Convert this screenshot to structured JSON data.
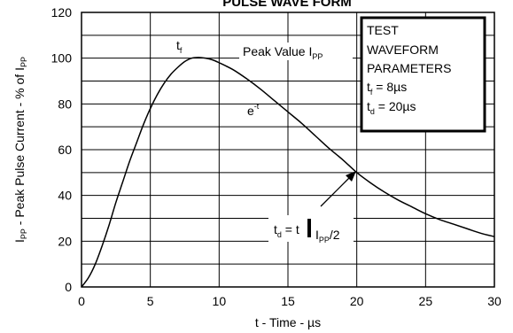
{
  "chart_data": {
    "type": "line",
    "title": "PULSE WAVE FORM",
    "xlabel": "t - Time - µs",
    "ylabel": {
      "a": "I",
      "a_sub": "PP",
      "b": " - Peak Pulse Current - % of I",
      "b_sub": "PP"
    },
    "xlim": [
      0,
      30
    ],
    "ylim": [
      0,
      120
    ],
    "xticks": [
      "0",
      "5",
      "10",
      "15",
      "20",
      "25",
      "30"
    ],
    "yticks": [
      "0",
      "20",
      "40",
      "60",
      "80",
      "100",
      "120"
    ],
    "grid": true,
    "series": [
      {
        "x": [
          0,
          0.5,
          1,
          1.5,
          2,
          2.5,
          3,
          3.5,
          4,
          4.5,
          5,
          5.5,
          6,
          6.5,
          7,
          7.5,
          8,
          8.5,
          9,
          9.5,
          10,
          11,
          12,
          13,
          14,
          15,
          16,
          17,
          18,
          19,
          20,
          21,
          22,
          23,
          24,
          25,
          26,
          27,
          28,
          29,
          30
        ],
        "y": [
          0,
          4,
          10,
          18,
          27,
          37,
          46,
          55,
          63,
          71,
          78,
          84,
          89,
          93,
          96,
          98.5,
          100,
          100.3,
          100,
          99.3,
          98,
          95,
          91,
          86.5,
          81.5,
          76.5,
          71.5,
          66,
          60.5,
          55.5,
          50,
          45.5,
          41.5,
          38,
          35,
          32,
          29.5,
          27.5,
          25.5,
          23.5,
          22
        ]
      }
    ],
    "annotations": {
      "tf": {
        "main": "t",
        "sub": "f"
      },
      "peak": {
        "main": "Peak Value I",
        "sub": "PP"
      },
      "exp": {
        "main": "e",
        "sup": "-t"
      },
      "td": {
        "a": "t",
        "a_sub": "d",
        "b": " = t",
        "c": "I",
        "c_sub": "PP",
        "d": "/2"
      }
    },
    "legend_box": {
      "position": "top-right",
      "line1": "TEST",
      "line2": "WAVEFORM",
      "line3": "PARAMETERS",
      "line4": {
        "main": "t",
        "sub": "f",
        "rest": " = 8µs"
      },
      "line5": {
        "main": "t",
        "sub": "d",
        "rest": " = 20µs"
      }
    }
  }
}
